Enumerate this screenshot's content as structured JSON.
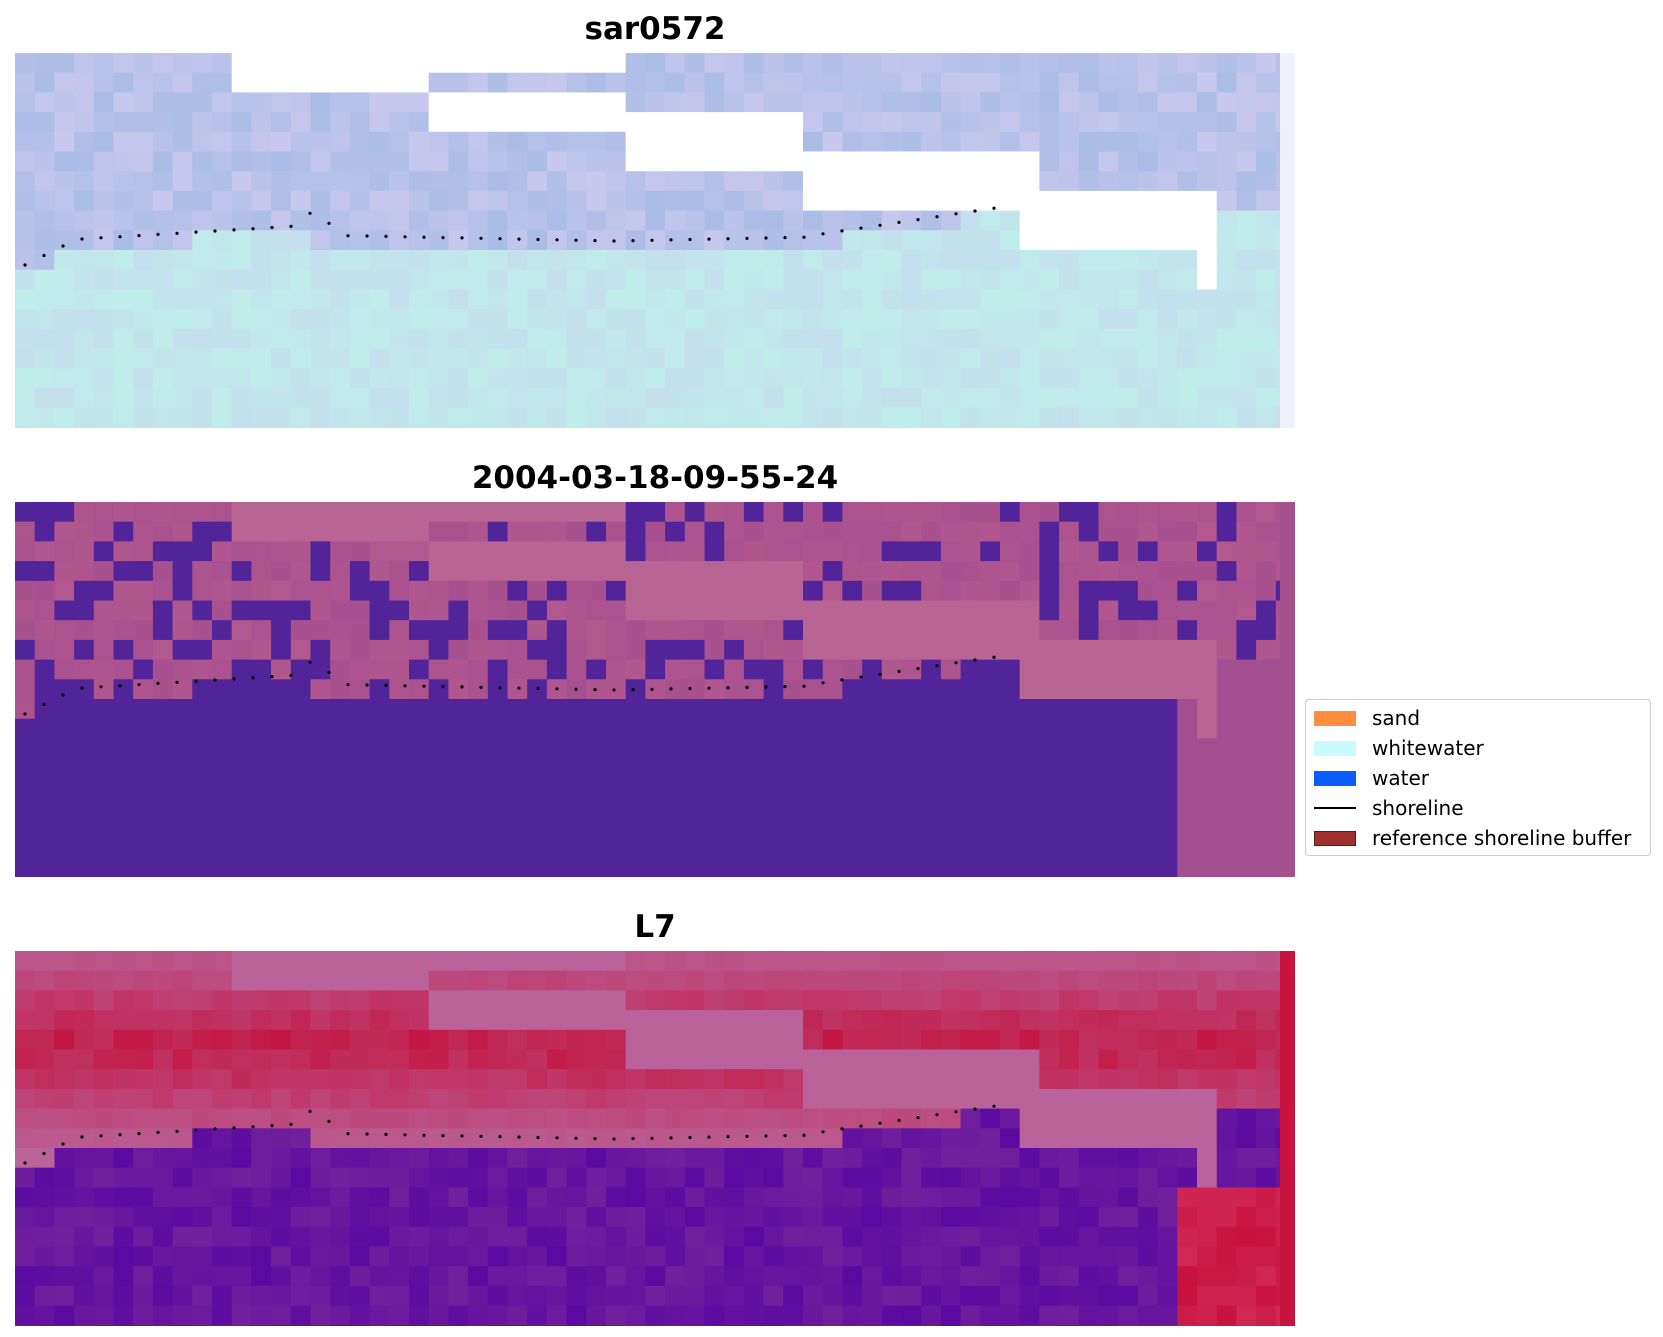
{
  "panels": [
    {
      "title": "sar0572",
      "kind": "rgb"
    },
    {
      "title": "2004-03-18-09-55-24",
      "kind": "classified"
    },
    {
      "title": "L7",
      "kind": "index"
    }
  ],
  "legend": {
    "items": [
      {
        "label": "sand",
        "color": "#ff8c3f",
        "type": "patch"
      },
      {
        "label": "whitewater",
        "color": "#c8fbff",
        "type": "patch"
      },
      {
        "label": "water",
        "color": "#0a5cff",
        "type": "patch"
      },
      {
        "label": "shoreline",
        "color": "#000000",
        "type": "line"
      },
      {
        "label": "reference shoreline buffer",
        "color": "#a0302e",
        "type": "patch"
      }
    ]
  },
  "colors": {
    "rgb_cloud": "#a8bde6",
    "rgb_water": "#bff0ec",
    "class_water": "#52249a",
    "class_land": "#b96593",
    "index_low": "#5a0aa0",
    "index_high": "#c8123f",
    "shoreline_dots": "#000000"
  }
}
